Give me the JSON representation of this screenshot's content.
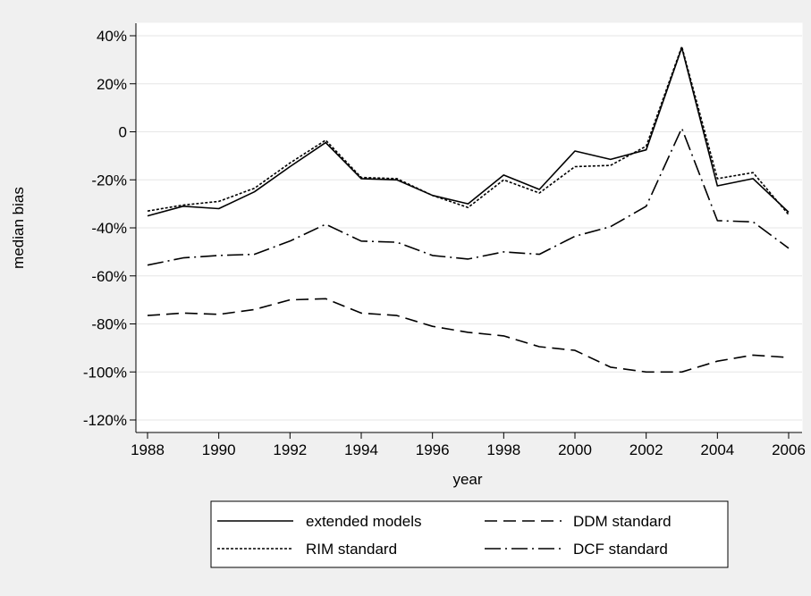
{
  "chart_data": {
    "type": "line",
    "title": "",
    "xlabel": "year",
    "ylabel": "median bias",
    "x": [
      1988,
      1989,
      1990,
      1991,
      1992,
      1993,
      1994,
      1995,
      1996,
      1997,
      1998,
      1999,
      2000,
      2001,
      2002,
      2003,
      2004,
      2005,
      2006
    ],
    "xlim": [
      1988,
      2006
    ],
    "ylim": [
      -120,
      40
    ],
    "xticks": [
      1988,
      1990,
      1992,
      1994,
      1996,
      1998,
      2000,
      2002,
      2004,
      2006
    ],
    "yticks": [
      {
        "value": 40,
        "label": "40%"
      },
      {
        "value": 20,
        "label": "20%"
      },
      {
        "value": 0,
        "label": "0"
      },
      {
        "value": -20,
        "label": "-20%"
      },
      {
        "value": -40,
        "label": "-40%"
      },
      {
        "value": -60,
        "label": "-60%"
      },
      {
        "value": -80,
        "label": "-80%"
      },
      {
        "value": -100,
        "label": "-100%"
      },
      {
        "value": -120,
        "label": "-120%"
      }
    ],
    "grid": "horizontal",
    "legend_position": "bottom",
    "series": [
      {
        "name": "extended models",
        "style": "solid",
        "values": [
          -35,
          -31,
          -32,
          -25,
          -14.5,
          -4.5,
          -19.5,
          -20,
          -26.5,
          -30,
          -18,
          -24,
          -8,
          -11.5,
          -7.5,
          35,
          -22.5,
          -19.5,
          -33.5
        ]
      },
      {
        "name": "DDM standard",
        "style": "dashed",
        "values": [
          -76.5,
          -75.5,
          -76,
          -74,
          -70,
          -69.5,
          -75.5,
          -76.5,
          -81,
          -83.5,
          -85,
          -89.5,
          -91,
          -98,
          -100,
          -100,
          -95.5,
          -93,
          -94
        ]
      },
      {
        "name": "RIM standard",
        "style": "dotted",
        "values": [
          -33,
          -30.5,
          -29,
          -23.5,
          -13,
          -3.5,
          -19,
          -19.5,
          -26.5,
          -31.5,
          -20,
          -25.5,
          -14.5,
          -14,
          -6,
          35.5,
          -19.5,
          -17,
          -34.5
        ]
      },
      {
        "name": "DCF standard",
        "style": "dashdot",
        "values": [
          -55.5,
          -52.5,
          -51.5,
          -51,
          -45.5,
          -38.5,
          -45.5,
          -46,
          -51.5,
          -53,
          -50,
          -51,
          -43.5,
          -39.5,
          -31,
          1.5,
          -37,
          -37.5,
          -48.5
        ]
      }
    ]
  }
}
